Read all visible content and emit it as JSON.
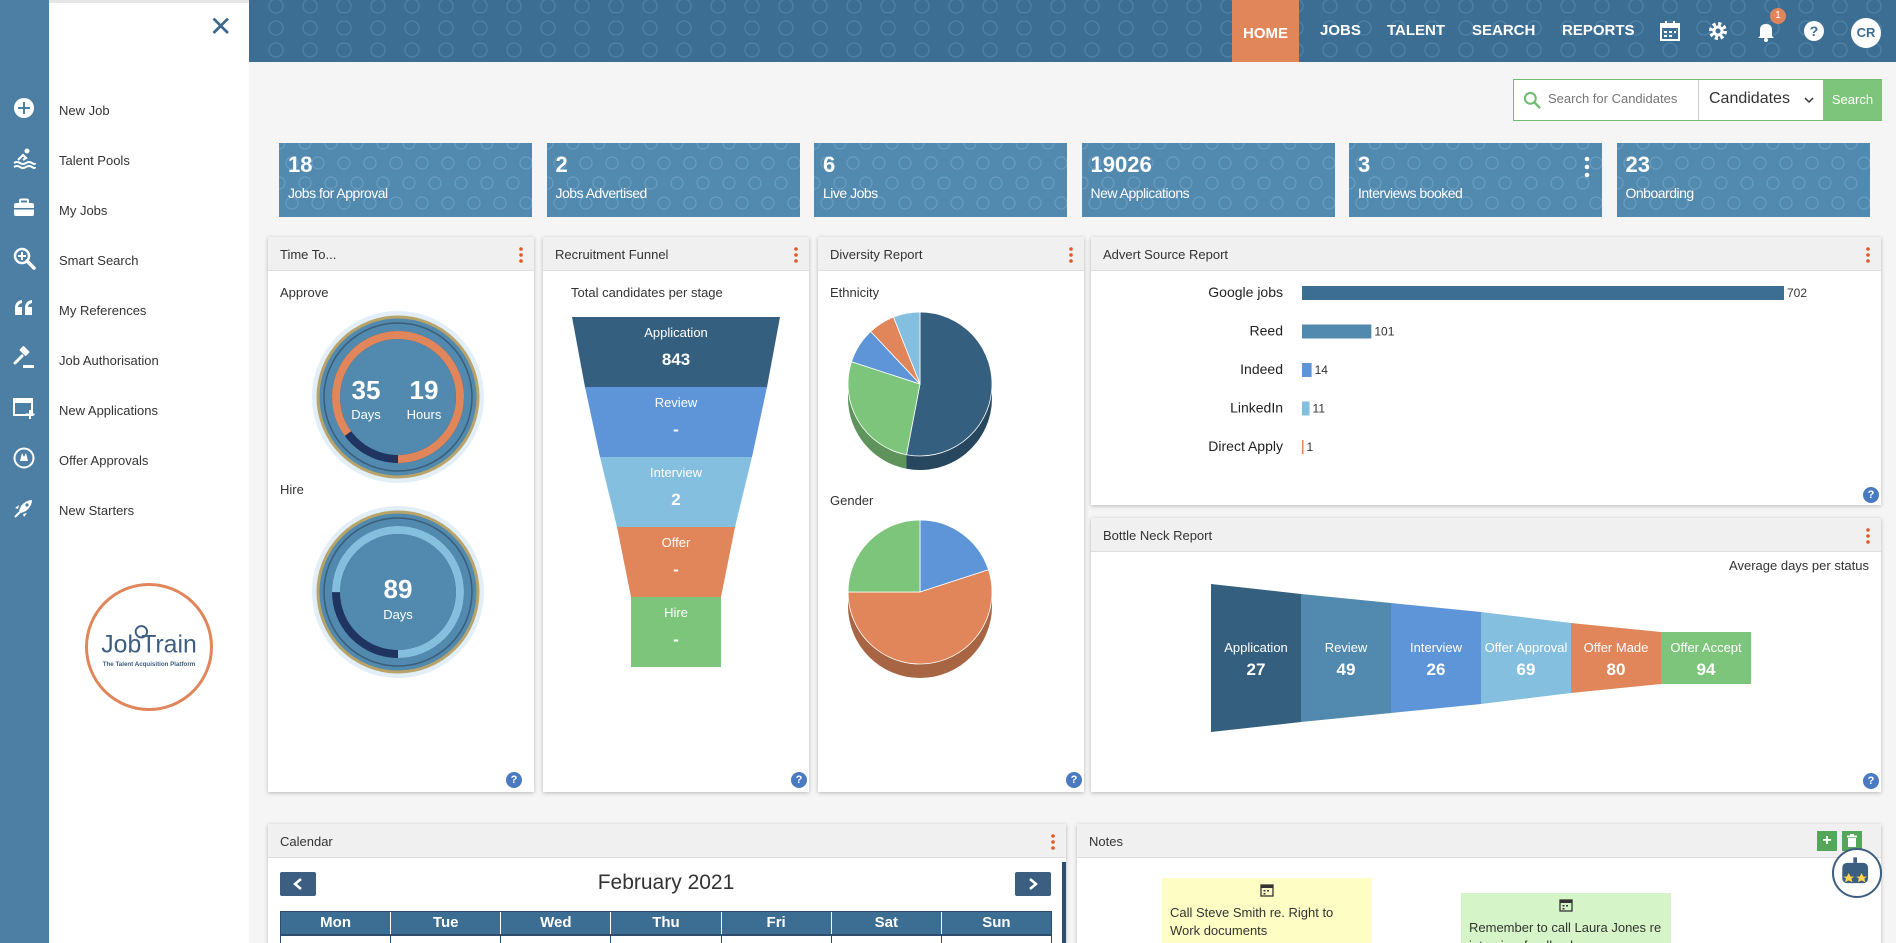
{
  "sidebar": {
    "items": [
      {
        "label": "New Job",
        "icon": "plus-circle-icon"
      },
      {
        "label": "Talent Pools",
        "icon": "swimmer-icon"
      },
      {
        "label": "My Jobs",
        "icon": "briefcase-icon"
      },
      {
        "label": "Smart Search",
        "icon": "zoom-plus-icon"
      },
      {
        "label": "My References",
        "icon": "quote-icon"
      },
      {
        "label": "Job Authorisation",
        "icon": "gavel-icon"
      },
      {
        "label": "New Applications",
        "icon": "window-plus-icon"
      },
      {
        "label": "Offer Approvals",
        "icon": "stamp-icon"
      },
      {
        "label": "New Starters",
        "icon": "rocket-icon"
      }
    ],
    "logo_text": "JobTrain",
    "logo_tagline": "The Talent Acquisition Platform"
  },
  "nav": {
    "items": [
      "HOME",
      "JOBS",
      "TALENT",
      "SEARCH",
      "REPORTS"
    ],
    "active": "HOME",
    "notification_count": "1",
    "avatar": "CR"
  },
  "search": {
    "placeholder": "Search for Candidates",
    "scope": "Candidates",
    "button": "Search"
  },
  "kpis": [
    {
      "value": "18",
      "label": "Jobs for Approval"
    },
    {
      "value": "2",
      "label": "Jobs Advertised"
    },
    {
      "value": "6",
      "label": "Live Jobs"
    },
    {
      "value": "19026",
      "label": "New Applications"
    },
    {
      "value": "3",
      "label": "Interviews booked"
    },
    {
      "value": "23",
      "label": "Onboarding"
    }
  ],
  "time_to": {
    "title": "Time To...",
    "approve_label": "Approve",
    "approve_days": "35",
    "approve_days_label": "Days",
    "approve_hours": "19",
    "approve_hours_label": "Hours",
    "hire_label": "Hire",
    "hire_days": "89",
    "hire_days_label": "Days",
    "approve_ring_fraction": 0.85,
    "hire_ring_fraction": 0.75
  },
  "funnel": {
    "title": "Recruitment Funnel",
    "subtitle": "Total candidates per stage",
    "stages": [
      {
        "name": "Application",
        "value": "843",
        "color": "#345f7e"
      },
      {
        "name": "Review",
        "value": "-",
        "color": "#5e95d8"
      },
      {
        "name": "Interview",
        "value": "2",
        "color": "#85bfe0"
      },
      {
        "name": "Offer",
        "value": "-",
        "color": "#e0865a"
      },
      {
        "name": "Hire",
        "value": "-",
        "color": "#7dc57b"
      }
    ]
  },
  "diversity": {
    "title": "Diversity Report",
    "ethnicity_label": "Ethnicity",
    "gender_label": "Gender",
    "ethnicity_slices": [
      {
        "value": 53,
        "color": "#345f7e"
      },
      {
        "value": 27,
        "color": "#7dc57b"
      },
      {
        "value": 8,
        "color": "#5e95d8"
      },
      {
        "value": 6,
        "color": "#e0865a"
      },
      {
        "value": 6,
        "color": "#85bfe0"
      }
    ],
    "gender_slices": [
      {
        "value": 20,
        "color": "#5e95d8"
      },
      {
        "value": 55,
        "color": "#e0865a"
      },
      {
        "value": 25,
        "color": "#7dc57b"
      }
    ]
  },
  "advert": {
    "title": "Advert Source Report",
    "sources": [
      {
        "name": "Google jobs",
        "value": 702,
        "color": "#3c6d93"
      },
      {
        "name": "Reed",
        "value": 101,
        "color": "#5289ae"
      },
      {
        "name": "Indeed",
        "value": 14,
        "color": "#5e95d8"
      },
      {
        "name": "LinkedIn",
        "value": 11,
        "color": "#85bfe0"
      },
      {
        "name": "Direct Apply",
        "value": 1,
        "color": "#e0865a"
      }
    ]
  },
  "bottleneck": {
    "title": "Bottle Neck Report",
    "subtitle": "Average days per status",
    "stages": [
      {
        "name": "Application",
        "value": "27",
        "color": "#345f7e"
      },
      {
        "name": "Review",
        "value": "49",
        "color": "#5289ae"
      },
      {
        "name": "Interview",
        "value": "26",
        "color": "#5e95d8"
      },
      {
        "name": "Offer Approval",
        "value": "69",
        "color": "#85bfe0"
      },
      {
        "name": "Offer Made",
        "value": "80",
        "color": "#e0865a"
      },
      {
        "name": "Offer Accept",
        "value": "94",
        "color": "#7dc57b"
      }
    ]
  },
  "calendar": {
    "title": "Calendar",
    "month": "February 2021",
    "weekdays": [
      "Mon",
      "Tue",
      "Wed",
      "Thu",
      "Fri",
      "Sat",
      "Sun"
    ]
  },
  "notes": {
    "title": "Notes",
    "items": [
      {
        "text": "Call Steve Smith re. Right to Work documents",
        "color": "#fdfdc4"
      },
      {
        "text": "Remember to call Laura Jones re interview feedback",
        "color": "#d5f5c8"
      }
    ]
  },
  "help_symbol": "?"
}
